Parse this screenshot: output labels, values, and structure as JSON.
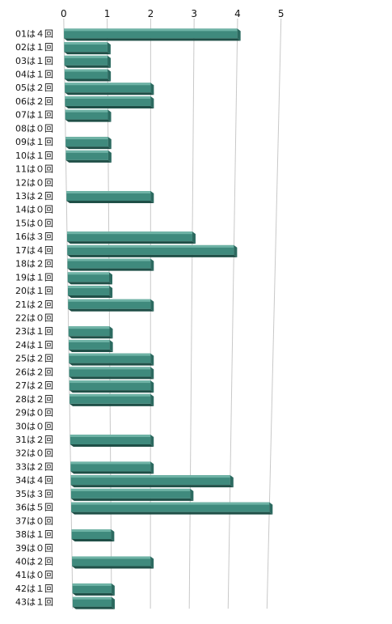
{
  "chart_data": {
    "type": "bar",
    "orientation": "horizontal",
    "title": "",
    "xlabel": "",
    "ylabel": "",
    "xlim": [
      0,
      5
    ],
    "xticks": [
      "0",
      "1",
      "2",
      "3",
      "4",
      "5"
    ],
    "grid": true,
    "legend": "none",
    "style": "3d-perspective",
    "colors": {
      "bar_top": "#6fb3a6",
      "bar_front": "#3f8a7d",
      "bar_bottom": "#1f4f47",
      "bar_end": "#2c6a60",
      "grid": "#c8c8c8"
    },
    "categories": [
      "01は４回",
      "02は１回",
      "03は１回",
      "04は１回",
      "05は２回",
      "06は２回",
      "07は１回",
      "08は０回",
      "09は１回",
      "10は１回",
      "11は０回",
      "12は０回",
      "13は２回",
      "14は０回",
      "15は０回",
      "16は３回",
      "17は４回",
      "18は２回",
      "19は１回",
      "20は１回",
      "21は２回",
      "22は０回",
      "23は１回",
      "24は１回",
      "25は２回",
      "26は２回",
      "27は２回",
      "28は２回",
      "29は０回",
      "30は０回",
      "31は２回",
      "32は０回",
      "33は２回",
      "34は４回",
      "35は３回",
      "36は５回",
      "37は０回",
      "38は１回",
      "39は０回",
      "40は２回",
      "41は０回",
      "42は１回",
      "43は１回"
    ],
    "values": [
      4,
      1,
      1,
      1,
      2,
      2,
      1,
      0,
      1,
      1,
      0,
      0,
      2,
      0,
      0,
      3,
      4,
      2,
      1,
      1,
      2,
      0,
      1,
      1,
      2,
      2,
      2,
      2,
      0,
      0,
      2,
      0,
      2,
      4,
      3,
      5,
      0,
      1,
      0,
      2,
      0,
      1,
      1
    ]
  }
}
